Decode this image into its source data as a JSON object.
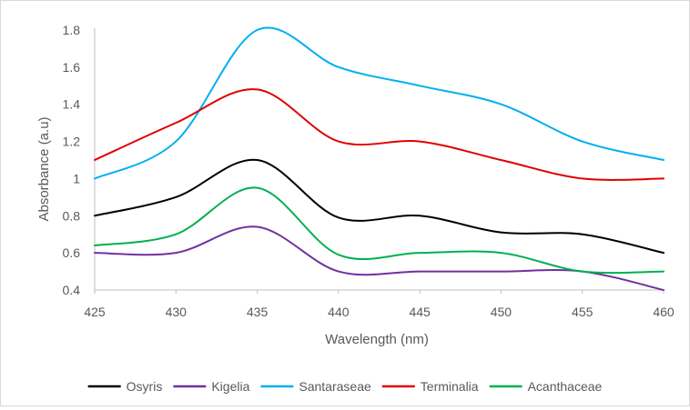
{
  "chart_data": {
    "type": "line",
    "title": "",
    "xlabel": "Wavelength (nm)",
    "ylabel": "Absorbance (a.u)",
    "xlim": [
      425,
      460
    ],
    "ylim": [
      0.4,
      1.8
    ],
    "x_ticks": [
      425,
      430,
      435,
      440,
      445,
      450,
      455,
      460
    ],
    "y_ticks": [
      0.4,
      0.6,
      0.8,
      1,
      1.2,
      1.4,
      1.6,
      1.8
    ],
    "x_tick_labels": [
      "425",
      "430",
      "435",
      "440",
      "445",
      "450",
      "455",
      "460"
    ],
    "y_tick_labels": [
      "0.4",
      "0.6",
      "0.8",
      "1",
      "1.2",
      "1.4",
      "1.6",
      "1.8"
    ],
    "grid": false,
    "legend_position": "bottom",
    "x": [
      425,
      430,
      435,
      440,
      445,
      450,
      455,
      460
    ],
    "series": [
      {
        "name": "Osyris",
        "color": "#000000",
        "values": [
          0.8,
          0.9,
          1.1,
          0.79,
          0.8,
          0.71,
          0.7,
          0.6
        ]
      },
      {
        "name": "Kigelia",
        "color": "#7030a0",
        "values": [
          0.6,
          0.6,
          0.74,
          0.5,
          0.5,
          0.5,
          0.5,
          0.4
        ]
      },
      {
        "name": "Santaraseae",
        "color": "#00b0f0",
        "values": [
          1.0,
          1.2,
          1.8,
          1.6,
          1.5,
          1.4,
          1.2,
          1.1
        ]
      },
      {
        "name": "Terminalia",
        "color": "#e00000",
        "values": [
          1.1,
          1.3,
          1.48,
          1.2,
          1.2,
          1.1,
          1.0,
          1.0
        ]
      },
      {
        "name": "Acanthaceae",
        "color": "#00b050",
        "values": [
          0.64,
          0.7,
          0.95,
          0.59,
          0.6,
          0.6,
          0.5,
          0.5
        ]
      }
    ]
  }
}
